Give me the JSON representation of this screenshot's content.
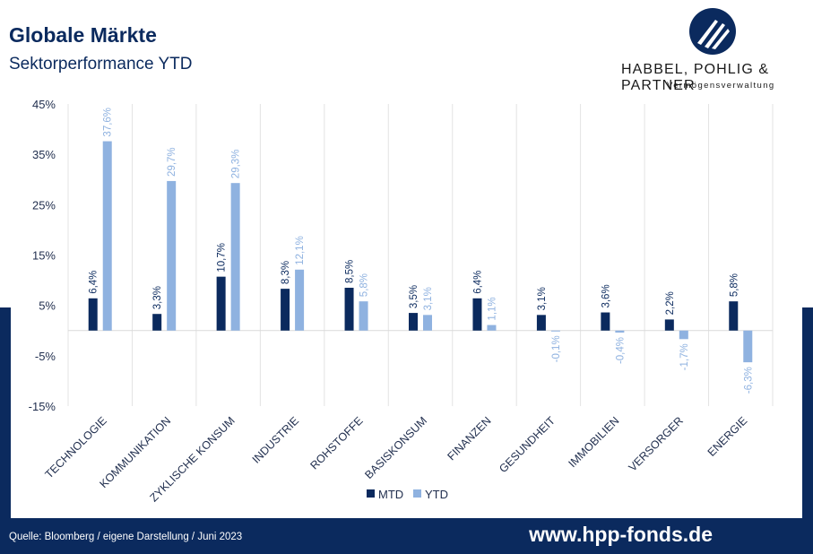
{
  "header": {
    "title": "Globale Märkte",
    "subtitle": "Sektorperformance YTD"
  },
  "brand": {
    "name": "HABBEL, POHLIG & PARTNER",
    "tagline": "Vermögensverwaltung"
  },
  "footer": {
    "source": "Quelle: Bloomberg / eigene Darstellung / Juni 2023",
    "url": "www.hpp-fonds.de"
  },
  "colors": {
    "navy": "#0b2a5e",
    "mtd": "#0b2a5e",
    "ytd": "#8fb2e0"
  },
  "chart_data": {
    "type": "bar",
    "categories": [
      "TECHNOLOGIE",
      "KOMMUNIKATION",
      "ZYKLISCHE KONSUM",
      "INDUSTRIE",
      "ROHSTOFFE",
      "BASISKONSUM",
      "FINANZEN",
      "GESUNDHEIT",
      "IMMOBILIEN",
      "VERSORGER",
      "ENERGIE"
    ],
    "series": [
      {
        "name": "MTD",
        "values": [
          6.4,
          3.3,
          10.7,
          8.3,
          8.5,
          3.5,
          6.4,
          3.1,
          3.6,
          2.2,
          5.8
        ],
        "labels": [
          "6,4%",
          "3,3%",
          "10,7%",
          "8,3%",
          "8,5%",
          "3,5%",
          "6,4%",
          "3,1%",
          "3,6%",
          "2,2%",
          "5,8%"
        ]
      },
      {
        "name": "YTD",
        "values": [
          37.6,
          29.7,
          29.3,
          12.1,
          5.8,
          3.1,
          1.1,
          -0.1,
          -0.4,
          -1.7,
          -6.3
        ],
        "labels": [
          "37,6%",
          "29,7%",
          "29,3%",
          "12,1%",
          "5,8%",
          "3,1%",
          "1,1%",
          "-0,1%",
          "-0,4%",
          "-1,7%",
          "-6,3%"
        ]
      }
    ],
    "yticks": [
      45,
      35,
      25,
      15,
      5,
      -5,
      -15
    ],
    "ytick_labels": [
      "45%",
      "35%",
      "25%",
      "15%",
      "5%",
      "-5%",
      "-15%"
    ],
    "ylim": [
      -15,
      45
    ],
    "legend_position": "bottom",
    "grid": "vertical category separators"
  }
}
